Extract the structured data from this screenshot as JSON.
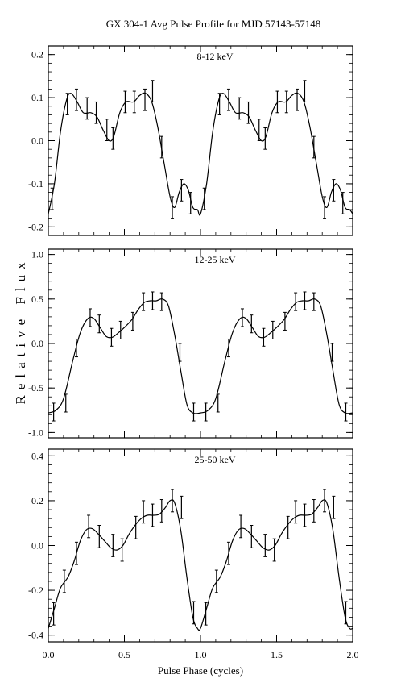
{
  "chart_data": {
    "type": "line",
    "title": "GX 304-1   Avg Pulse Profile for MJD 57143-57148",
    "xlabel": "Pulse Phase (cycles)",
    "ylabel": "Relative Flux",
    "xlim": [
      0.0,
      2.0
    ],
    "xticks": [
      "0.0",
      "0.5",
      "1.0",
      "1.5",
      "2.0"
    ],
    "grid": false,
    "panels": [
      {
        "label": "8-12 keV",
        "ylim": [
          -0.22,
          0.22
        ],
        "yticks": [
          "0.2",
          "0.1",
          "0.0",
          "-0.1",
          "-0.2"
        ],
        "ytick_values": [
          0.2,
          0.1,
          0.0,
          -0.1,
          -0.2
        ],
        "points": [
          {
            "x": 0.025,
            "y": -0.135,
            "err": 0.025
          },
          {
            "x": 0.125,
            "y": 0.085,
            "err": 0.025
          },
          {
            "x": 0.185,
            "y": 0.095,
            "err": 0.025
          },
          {
            "x": 0.255,
            "y": 0.075,
            "err": 0.025
          },
          {
            "x": 0.315,
            "y": 0.065,
            "err": 0.025
          },
          {
            "x": 0.385,
            "y": 0.025,
            "err": 0.025
          },
          {
            "x": 0.425,
            "y": 0.005,
            "err": 0.025
          },
          {
            "x": 0.505,
            "y": 0.09,
            "err": 0.025
          },
          {
            "x": 0.565,
            "y": 0.09,
            "err": 0.025
          },
          {
            "x": 0.635,
            "y": 0.095,
            "err": 0.025
          },
          {
            "x": 0.685,
            "y": 0.115,
            "err": 0.025
          },
          {
            "x": 0.745,
            "y": -0.015,
            "err": 0.025
          },
          {
            "x": 0.815,
            "y": -0.155,
            "err": 0.025
          },
          {
            "x": 0.875,
            "y": -0.115,
            "err": 0.025
          },
          {
            "x": 0.935,
            "y": -0.145,
            "err": 0.025
          },
          {
            "x": 1.025,
            "y": -0.135,
            "err": 0.025
          },
          {
            "x": 1.125,
            "y": 0.085,
            "err": 0.025
          },
          {
            "x": 1.185,
            "y": 0.095,
            "err": 0.025
          },
          {
            "x": 1.255,
            "y": 0.075,
            "err": 0.025
          },
          {
            "x": 1.315,
            "y": 0.065,
            "err": 0.025
          },
          {
            "x": 1.385,
            "y": 0.025,
            "err": 0.025
          },
          {
            "x": 1.425,
            "y": 0.005,
            "err": 0.025
          },
          {
            "x": 1.505,
            "y": 0.09,
            "err": 0.025
          },
          {
            "x": 1.565,
            "y": 0.09,
            "err": 0.025
          },
          {
            "x": 1.635,
            "y": 0.095,
            "err": 0.025
          },
          {
            "x": 1.685,
            "y": 0.115,
            "err": 0.025
          },
          {
            "x": 1.745,
            "y": -0.015,
            "err": 0.025
          },
          {
            "x": 1.815,
            "y": -0.155,
            "err": 0.025
          },
          {
            "x": 1.875,
            "y": -0.115,
            "err": 0.025
          },
          {
            "x": 1.935,
            "y": -0.145,
            "err": 0.025
          }
        ],
        "curve": [
          [
            0.0,
            -0.17
          ],
          [
            0.04,
            -0.1
          ],
          [
            0.08,
            0.02
          ],
          [
            0.12,
            0.095
          ],
          [
            0.15,
            0.11
          ],
          [
            0.19,
            0.09
          ],
          [
            0.23,
            0.065
          ],
          [
            0.28,
            0.065
          ],
          [
            0.32,
            0.055
          ],
          [
            0.36,
            0.025
          ],
          [
            0.4,
            0.0
          ],
          [
            0.43,
            0.01
          ],
          [
            0.47,
            0.065
          ],
          [
            0.51,
            0.09
          ],
          [
            0.56,
            0.09
          ],
          [
            0.6,
            0.105
          ],
          [
            0.64,
            0.11
          ],
          [
            0.68,
            0.09
          ],
          [
            0.72,
            0.03
          ],
          [
            0.76,
            -0.05
          ],
          [
            0.8,
            -0.13
          ],
          [
            0.83,
            -0.155
          ],
          [
            0.86,
            -0.12
          ],
          [
            0.89,
            -0.1
          ],
          [
            0.92,
            -0.115
          ],
          [
            0.95,
            -0.155
          ],
          [
            0.98,
            -0.16
          ],
          [
            1.0,
            -0.17
          ],
          [
            1.04,
            -0.1
          ],
          [
            1.08,
            0.02
          ],
          [
            1.12,
            0.095
          ],
          [
            1.15,
            0.11
          ],
          [
            1.19,
            0.09
          ],
          [
            1.23,
            0.065
          ],
          [
            1.28,
            0.065
          ],
          [
            1.32,
            0.055
          ],
          [
            1.36,
            0.025
          ],
          [
            1.4,
            0.0
          ],
          [
            1.43,
            0.01
          ],
          [
            1.47,
            0.065
          ],
          [
            1.51,
            0.09
          ],
          [
            1.56,
            0.09
          ],
          [
            1.6,
            0.105
          ],
          [
            1.64,
            0.11
          ],
          [
            1.68,
            0.09
          ],
          [
            1.72,
            0.03
          ],
          [
            1.76,
            -0.05
          ],
          [
            1.8,
            -0.13
          ],
          [
            1.83,
            -0.155
          ],
          [
            1.86,
            -0.12
          ],
          [
            1.89,
            -0.1
          ],
          [
            1.92,
            -0.115
          ],
          [
            1.95,
            -0.155
          ],
          [
            1.98,
            -0.16
          ],
          [
            2.0,
            -0.17
          ]
        ]
      },
      {
        "label": "12-25 keV",
        "ylim": [
          -1.06,
          1.06
        ],
        "yticks": [
          "1.0",
          "0.5",
          "0.0",
          "-0.5",
          "-1.0"
        ],
        "ytick_values": [
          1.0,
          0.5,
          0.0,
          -0.5,
          -1.0
        ],
        "points": [
          {
            "x": 0.035,
            "y": -0.77,
            "err": 0.1
          },
          {
            "x": 0.115,
            "y": -0.67,
            "err": 0.1
          },
          {
            "x": 0.185,
            "y": -0.05,
            "err": 0.1
          },
          {
            "x": 0.275,
            "y": 0.29,
            "err": 0.1
          },
          {
            "x": 0.335,
            "y": 0.22,
            "err": 0.1
          },
          {
            "x": 0.415,
            "y": 0.07,
            "err": 0.1
          },
          {
            "x": 0.475,
            "y": 0.15,
            "err": 0.1
          },
          {
            "x": 0.555,
            "y": 0.25,
            "err": 0.1
          },
          {
            "x": 0.625,
            "y": 0.47,
            "err": 0.1
          },
          {
            "x": 0.685,
            "y": 0.48,
            "err": 0.1
          },
          {
            "x": 0.745,
            "y": 0.47,
            "err": 0.1
          },
          {
            "x": 0.865,
            "y": -0.1,
            "err": 0.1
          },
          {
            "x": 0.955,
            "y": -0.77,
            "err": 0.1
          },
          {
            "x": 1.035,
            "y": -0.77,
            "err": 0.1
          },
          {
            "x": 1.115,
            "y": -0.67,
            "err": 0.1
          },
          {
            "x": 1.185,
            "y": -0.05,
            "err": 0.1
          },
          {
            "x": 1.275,
            "y": 0.29,
            "err": 0.1
          },
          {
            "x": 1.335,
            "y": 0.22,
            "err": 0.1
          },
          {
            "x": 1.415,
            "y": 0.07,
            "err": 0.1
          },
          {
            "x": 1.475,
            "y": 0.15,
            "err": 0.1
          },
          {
            "x": 1.555,
            "y": 0.25,
            "err": 0.1
          },
          {
            "x": 1.625,
            "y": 0.47,
            "err": 0.1
          },
          {
            "x": 1.685,
            "y": 0.48,
            "err": 0.1
          },
          {
            "x": 1.745,
            "y": 0.47,
            "err": 0.1
          },
          {
            "x": 1.865,
            "y": -0.1,
            "err": 0.1
          },
          {
            "x": 1.955,
            "y": -0.77,
            "err": 0.1
          }
        ],
        "curve": [
          [
            0.0,
            -0.78
          ],
          [
            0.05,
            -0.75
          ],
          [
            0.1,
            -0.62
          ],
          [
            0.16,
            -0.2
          ],
          [
            0.21,
            0.12
          ],
          [
            0.26,
            0.28
          ],
          [
            0.3,
            0.28
          ],
          [
            0.34,
            0.18
          ],
          [
            0.38,
            0.08
          ],
          [
            0.42,
            0.07
          ],
          [
            0.46,
            0.12
          ],
          [
            0.5,
            0.18
          ],
          [
            0.55,
            0.27
          ],
          [
            0.59,
            0.38
          ],
          [
            0.63,
            0.46
          ],
          [
            0.67,
            0.48
          ],
          [
            0.71,
            0.48
          ],
          [
            0.75,
            0.5
          ],
          [
            0.79,
            0.42
          ],
          [
            0.83,
            0.1
          ],
          [
            0.87,
            -0.3
          ],
          [
            0.91,
            -0.68
          ],
          [
            0.95,
            -0.78
          ],
          [
            1.0,
            -0.78
          ],
          [
            1.05,
            -0.75
          ],
          [
            1.1,
            -0.62
          ],
          [
            1.16,
            -0.2
          ],
          [
            1.21,
            0.12
          ],
          [
            1.26,
            0.28
          ],
          [
            1.3,
            0.28
          ],
          [
            1.34,
            0.18
          ],
          [
            1.38,
            0.08
          ],
          [
            1.42,
            0.07
          ],
          [
            1.46,
            0.12
          ],
          [
            1.5,
            0.18
          ],
          [
            1.55,
            0.27
          ],
          [
            1.59,
            0.38
          ],
          [
            1.63,
            0.46
          ],
          [
            1.67,
            0.48
          ],
          [
            1.71,
            0.48
          ],
          [
            1.75,
            0.5
          ],
          [
            1.79,
            0.42
          ],
          [
            1.83,
            0.1
          ],
          [
            1.87,
            -0.3
          ],
          [
            1.91,
            -0.68
          ],
          [
            1.95,
            -0.78
          ],
          [
            2.0,
            -0.78
          ]
        ]
      },
      {
        "label": "25-50 keV",
        "ylim": [
          -0.43,
          0.43
        ],
        "yticks": [
          "0.4",
          "0.2",
          "0.0",
          "-0.2",
          "-0.4"
        ],
        "ytick_values": [
          0.4,
          0.2,
          0.0,
          -0.2,
          -0.4
        ],
        "points": [
          {
            "x": 0.035,
            "y": -0.305,
            "err": 0.05
          },
          {
            "x": 0.105,
            "y": -0.16,
            "err": 0.05
          },
          {
            "x": 0.185,
            "y": -0.035,
            "err": 0.05
          },
          {
            "x": 0.265,
            "y": 0.085,
            "err": 0.05
          },
          {
            "x": 0.335,
            "y": 0.04,
            "err": 0.05
          },
          {
            "x": 0.425,
            "y": 0.0,
            "err": 0.05
          },
          {
            "x": 0.485,
            "y": -0.02,
            "err": 0.05
          },
          {
            "x": 0.575,
            "y": 0.08,
            "err": 0.05
          },
          {
            "x": 0.625,
            "y": 0.15,
            "err": 0.05
          },
          {
            "x": 0.685,
            "y": 0.135,
            "err": 0.05
          },
          {
            "x": 0.745,
            "y": 0.155,
            "err": 0.05
          },
          {
            "x": 0.815,
            "y": 0.2,
            "err": 0.05
          },
          {
            "x": 0.875,
            "y": 0.17,
            "err": 0.05
          },
          {
            "x": 0.955,
            "y": -0.3,
            "err": 0.05
          },
          {
            "x": 1.035,
            "y": -0.305,
            "err": 0.05
          },
          {
            "x": 1.105,
            "y": -0.16,
            "err": 0.05
          },
          {
            "x": 1.185,
            "y": -0.035,
            "err": 0.05
          },
          {
            "x": 1.265,
            "y": 0.085,
            "err": 0.05
          },
          {
            "x": 1.335,
            "y": 0.04,
            "err": 0.05
          },
          {
            "x": 1.425,
            "y": 0.0,
            "err": 0.05
          },
          {
            "x": 1.485,
            "y": -0.02,
            "err": 0.05
          },
          {
            "x": 1.575,
            "y": 0.08,
            "err": 0.05
          },
          {
            "x": 1.625,
            "y": 0.15,
            "err": 0.05
          },
          {
            "x": 1.685,
            "y": 0.135,
            "err": 0.05
          },
          {
            "x": 1.745,
            "y": 0.155,
            "err": 0.05
          },
          {
            "x": 1.815,
            "y": 0.2,
            "err": 0.05
          },
          {
            "x": 1.875,
            "y": 0.17,
            "err": 0.05
          },
          {
            "x": 1.955,
            "y": -0.3,
            "err": 0.05
          }
        ],
        "curve": [
          [
            0.0,
            -0.37
          ],
          [
            0.04,
            -0.28
          ],
          [
            0.08,
            -0.19
          ],
          [
            0.13,
            -0.14
          ],
          [
            0.17,
            -0.07
          ],
          [
            0.21,
            0.02
          ],
          [
            0.25,
            0.07
          ],
          [
            0.29,
            0.075
          ],
          [
            0.33,
            0.05
          ],
          [
            0.37,
            0.02
          ],
          [
            0.41,
            -0.01
          ],
          [
            0.45,
            -0.02
          ],
          [
            0.49,
            0.0
          ],
          [
            0.53,
            0.05
          ],
          [
            0.57,
            0.09
          ],
          [
            0.61,
            0.12
          ],
          [
            0.65,
            0.135
          ],
          [
            0.69,
            0.135
          ],
          [
            0.73,
            0.14
          ],
          [
            0.77,
            0.17
          ],
          [
            0.8,
            0.2
          ],
          [
            0.83,
            0.19
          ],
          [
            0.87,
            0.07
          ],
          [
            0.91,
            -0.14
          ],
          [
            0.95,
            -0.32
          ],
          [
            0.98,
            -0.37
          ],
          [
            1.0,
            -0.37
          ],
          [
            1.04,
            -0.28
          ],
          [
            1.08,
            -0.19
          ],
          [
            1.13,
            -0.14
          ],
          [
            1.17,
            -0.07
          ],
          [
            1.21,
            0.02
          ],
          [
            1.25,
            0.07
          ],
          [
            1.29,
            0.075
          ],
          [
            1.33,
            0.05
          ],
          [
            1.37,
            0.02
          ],
          [
            1.41,
            -0.01
          ],
          [
            1.45,
            -0.02
          ],
          [
            1.49,
            0.0
          ],
          [
            1.53,
            0.05
          ],
          [
            1.57,
            0.09
          ],
          [
            1.61,
            0.12
          ],
          [
            1.65,
            0.135
          ],
          [
            1.69,
            0.135
          ],
          [
            1.73,
            0.14
          ],
          [
            1.77,
            0.17
          ],
          [
            1.8,
            0.2
          ],
          [
            1.83,
            0.19
          ],
          [
            1.87,
            0.07
          ],
          [
            1.91,
            -0.14
          ],
          [
            1.95,
            -0.32
          ],
          [
            1.98,
            -0.37
          ],
          [
            2.0,
            -0.37
          ]
        ]
      }
    ]
  }
}
